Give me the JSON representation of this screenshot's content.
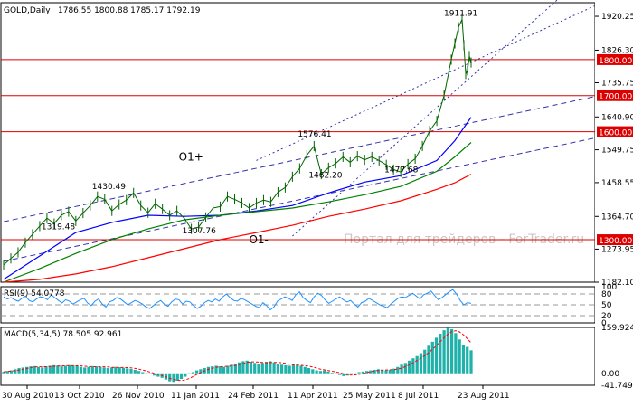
{
  "chart_data": {
    "type": "line",
    "symbol": "GOLD,Daily",
    "ohlc_header": "1786.55 1800.88 1785.17 1792.19",
    "watermark": "Портал для трейдеров - ForTrader.ru",
    "price_panel": {
      "ylim": [
        1182.1,
        1958.0
      ],
      "yticks": [
        "1920.25",
        "1826.30",
        "1735.75",
        "1640.90",
        "1549.75",
        "1458.55",
        "1364.70",
        "1273.95",
        "1182.10"
      ],
      "horizontal_levels": [
        {
          "label": "1800.00",
          "value": 1800.0
        },
        {
          "label": "1700.00",
          "value": 1700.0
        },
        {
          "label": "1600.00",
          "value": 1600.0
        },
        {
          "label": "1300.00",
          "value": 1300.0
        }
      ],
      "annotations": [
        {
          "text": "1911.91",
          "x": 251,
          "y": 1911.91
        },
        {
          "text": "1576.41",
          "x": 170,
          "y": 1576.41
        },
        {
          "text": "1430.49",
          "x": 56,
          "y": 1430.49
        },
        {
          "text": "1319.48",
          "x": 28,
          "y": 1319.48
        },
        {
          "text": "1307.76",
          "x": 106,
          "y": 1307.76
        },
        {
          "text": "1462.20",
          "x": 176,
          "y": 1462.2
        },
        {
          "text": "1477.68",
          "x": 218,
          "y": 1477.68
        },
        {
          "text": "O1+",
          "x": 97,
          "y": 1520
        },
        {
          "text": "O1-",
          "x": 136,
          "y": 1290
        }
      ],
      "price_series": [
        [
          0,
          1230
        ],
        [
          4,
          1248
        ],
        [
          8,
          1265
        ],
        [
          12,
          1292
        ],
        [
          16,
          1315
        ],
        [
          20,
          1338
        ],
        [
          24,
          1360
        ],
        [
          28,
          1345
        ],
        [
          32,
          1368
        ],
        [
          36,
          1378
        ],
        [
          40,
          1352
        ],
        [
          44,
          1374
        ],
        [
          48,
          1395
        ],
        [
          52,
          1420
        ],
        [
          56,
          1412
        ],
        [
          60,
          1380
        ],
        [
          64,
          1398
        ],
        [
          68,
          1410
        ],
        [
          72,
          1430
        ],
        [
          76,
          1395
        ],
        [
          80,
          1375
        ],
        [
          84,
          1400
        ],
        [
          88,
          1385
        ],
        [
          92,
          1368
        ],
        [
          96,
          1380
        ],
        [
          100,
          1360
        ],
        [
          104,
          1330
        ],
        [
          108,
          1335
        ],
        [
          112,
          1362
        ],
        [
          116,
          1388
        ],
        [
          120,
          1392
        ],
        [
          124,
          1420
        ],
        [
          128,
          1412
        ],
        [
          132,
          1402
        ],
        [
          136,
          1388
        ],
        [
          140,
          1402
        ],
        [
          144,
          1410
        ],
        [
          148,
          1405
        ],
        [
          152,
          1432
        ],
        [
          156,
          1445
        ],
        [
          160,
          1475
        ],
        [
          164,
          1498
        ],
        [
          168,
          1535
        ],
        [
          172,
          1560
        ],
        [
          176,
          1482
        ],
        [
          180,
          1500
        ],
        [
          184,
          1512
        ],
        [
          188,
          1530
        ],
        [
          192,
          1515
        ],
        [
          196,
          1532
        ],
        [
          200,
          1522
        ],
        [
          204,
          1530
        ],
        [
          208,
          1520
        ],
        [
          212,
          1508
        ],
        [
          216,
          1495
        ],
        [
          220,
          1488
        ],
        [
          224,
          1510
        ],
        [
          228,
          1525
        ],
        [
          232,
          1560
        ],
        [
          236,
          1602
        ],
        [
          240,
          1630
        ],
        [
          244,
          1700
        ],
        [
          248,
          1800
        ],
        [
          250,
          1845
        ],
        [
          252,
          1890
        ],
        [
          254,
          1911.91
        ],
        [
          255,
          1840
        ],
        [
          256,
          1760
        ],
        [
          257,
          1770
        ],
        [
          258,
          1810
        ],
        [
          259,
          1792
        ]
      ],
      "ma_series": [
        {
          "name": "",
          "color": "#0000ff",
          "points": [
            [
              0,
              1190
            ],
            [
              20,
              1255
            ],
            [
              40,
              1320
            ],
            [
              60,
              1348
            ],
            [
              80,
              1368
            ],
            [
              100,
              1365
            ],
            [
              120,
              1368
            ],
            [
              140,
              1380
            ],
            [
              160,
              1395
            ],
            [
              180,
              1430
            ],
            [
              200,
              1460
            ],
            [
              220,
              1478
            ],
            [
              240,
              1520
            ],
            [
              250,
              1575
            ],
            [
              259,
              1640
            ]
          ]
        },
        {
          "name": "",
          "color": "#008000",
          "points": [
            [
              0,
              1182
            ],
            [
              20,
              1220
            ],
            [
              40,
              1262
            ],
            [
              60,
              1300
            ],
            [
              80,
              1330
            ],
            [
              100,
              1355
            ],
            [
              120,
              1368
            ],
            [
              140,
              1378
            ],
            [
              160,
              1388
            ],
            [
              180,
              1405
            ],
            [
              200,
              1425
            ],
            [
              220,
              1448
            ],
            [
              240,
              1490
            ],
            [
              250,
              1530
            ],
            [
              259,
              1570
            ]
          ]
        },
        {
          "name": "",
          "color": "#ff0000",
          "points": [
            [
              0,
              1182
            ],
            [
              20,
              1190
            ],
            [
              40,
              1205
            ],
            [
              60,
              1225
            ],
            [
              80,
              1250
            ],
            [
              100,
              1275
            ],
            [
              120,
              1300
            ],
            [
              140,
              1320
            ],
            [
              160,
              1340
            ],
            [
              180,
              1365
            ],
            [
              200,
              1385
            ],
            [
              220,
              1408
            ],
            [
              240,
              1440
            ],
            [
              250,
              1458
            ],
            [
              259,
              1482
            ]
          ]
        }
      ],
      "trend_lines": [
        {
          "style": "dashed",
          "color": "#3333aa",
          "from": [
            0,
            1350
          ],
          "to": [
            330,
            1700
          ]
        },
        {
          "style": "dashed",
          "color": "#3333aa",
          "from": [
            0,
            1240
          ],
          "to": [
            330,
            1585
          ]
        },
        {
          "style": "dotted",
          "color": "#3333aa",
          "from": [
            160,
            1310
          ],
          "to": [
            330,
            2070
          ]
        },
        {
          "style": "dotted",
          "color": "#3333aa",
          "from": [
            140,
            1520
          ],
          "to": [
            330,
            1955
          ]
        }
      ]
    },
    "rsi_panel": {
      "label": "RSI(9) 54.0778",
      "ylim": [
        0,
        100
      ],
      "yticks": [
        "100",
        "80",
        "50",
        "20",
        "0"
      ],
      "levels": [
        80,
        50,
        20
      ],
      "values": [
        72,
        66,
        70,
        64,
        60,
        68,
        74,
        62,
        58,
        66,
        72,
        70,
        64,
        78,
        70,
        62,
        55,
        64,
        60,
        52,
        58,
        64,
        68,
        55,
        48,
        60,
        66,
        52,
        44,
        58,
        62,
        70,
        66,
        58,
        50,
        56,
        62,
        58,
        52,
        44,
        40,
        48,
        56,
        62,
        52,
        46,
        58,
        66,
        64,
        52,
        60,
        58,
        48,
        40,
        46,
        56,
        62,
        58,
        66,
        60,
        72,
        80,
        70,
        62,
        60,
        68,
        64,
        58,
        52,
        46,
        42,
        56,
        48,
        36,
        44,
        60,
        66,
        72,
        68,
        62,
        78,
        86,
        70,
        62,
        56,
        72,
        82,
        76,
        64,
        54,
        60,
        66,
        72,
        64,
        58,
        62,
        52,
        44,
        56,
        60,
        68,
        62,
        56,
        50,
        46,
        42,
        52,
        60,
        68,
        72,
        70,
        76,
        82,
        74,
        66,
        78,
        82,
        88,
        76,
        64,
        70,
        78,
        86,
        92,
        80,
        62,
        50,
        56,
        54
      ],
      "color": "#1e90ff"
    },
    "macd_panel": {
      "label": "MACD(5,34,5) 78.505 92.961",
      "ylim": [
        -41.749,
        159.924
      ],
      "yticks": [
        "159.924",
        "0.00",
        "-41.749"
      ],
      "histogram": [
        5,
        8,
        10,
        14,
        18,
        20,
        22,
        24,
        25,
        22,
        20,
        24,
        26,
        28,
        27,
        24,
        26,
        28,
        27,
        25,
        22,
        20,
        22,
        25,
        24,
        22,
        20,
        18,
        20,
        22,
        21,
        19,
        17,
        15,
        12,
        8,
        4,
        0,
        -4,
        -8,
        -12,
        -16,
        -22,
        -28,
        -30,
        -26,
        -20,
        -12,
        -4,
        4,
        10,
        14,
        18,
        22,
        24,
        26,
        24,
        22,
        26,
        30,
        34,
        38,
        42,
        44,
        40,
        36,
        32,
        36,
        40,
        42,
        38,
        34,
        30,
        28,
        26,
        28,
        30,
        26,
        22,
        18,
        14,
        10,
        8,
        10,
        6,
        2,
        -2,
        -6,
        -10,
        -8,
        -4,
        0,
        4,
        6,
        8,
        10,
        12,
        14,
        12,
        10,
        12,
        16,
        22,
        30,
        36,
        44,
        52,
        60,
        70,
        82,
        96,
        110,
        124,
        138,
        150,
        159,
        154,
        140,
        118,
        100,
        92,
        80
      ],
      "signal_color": "#ff0000",
      "bar_color": "#20b2aa"
    },
    "x_axis": {
      "labels": [
        "30 Aug 2010",
        "13 Oct 2010",
        "26 Nov 2010",
        "11 Jan 2011",
        "24 Feb 2011",
        "11 Apr 2011",
        "25 May 2011",
        "8 Jul 2011",
        "23 Aug 2011"
      ]
    }
  }
}
